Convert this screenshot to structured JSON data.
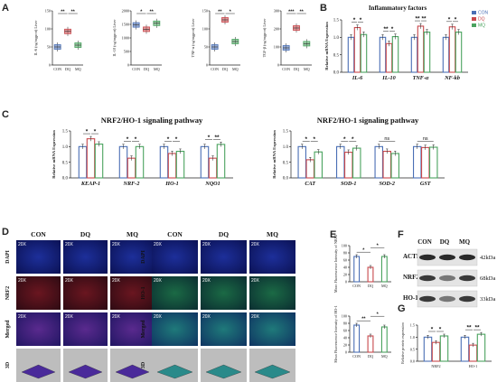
{
  "panels": {
    "A": {
      "label": "A",
      "x_categories": [
        "CON",
        "DQ",
        "MQ"
      ],
      "plots": [
        {
          "ylabel": "IL-6 (ng/mgprot) Liver",
          "ylim": [
            0,
            150
          ],
          "yticks": [
            0,
            50,
            100,
            150
          ],
          "medians": [
            50,
            93,
            55
          ],
          "sigs": [
            "**",
            "**"
          ]
        },
        {
          "ylabel": "IL-10 (ng/mgprot) Liver",
          "ylim": [
            0,
            2000
          ],
          "yticks": [
            0,
            500,
            1000,
            1500,
            2000
          ],
          "medians": [
            1480,
            1320,
            1540
          ],
          "sigs": [
            "*",
            "**"
          ]
        },
        {
          "ylabel": "TNF-α (ng/mgprot) Liver",
          "ylim": [
            0,
            150
          ],
          "yticks": [
            0,
            50,
            100,
            150
          ],
          "medians": [
            50,
            125,
            65
          ],
          "sigs": [
            "**",
            "*"
          ]
        },
        {
          "ylabel": "TGF-β (ng/mgprot) Liver",
          "ylim": [
            0,
            300
          ],
          "yticks": [
            0,
            100,
            200,
            300
          ],
          "medians": [
            95,
            205,
            118
          ],
          "sigs": [
            "***",
            "**"
          ]
        }
      ]
    },
    "B": {
      "label": "B",
      "title": "Inflammatory factors",
      "legend": [
        "CON",
        "DQ",
        "MQ"
      ],
      "colors": [
        "#4a6fb5",
        "#c8484c",
        "#4aa35f"
      ],
      "chart_data": {
        "type": "bar",
        "ylabel": "Relative mRNA Expression",
        "ylim": [
          0,
          1.5
        ],
        "yticks": [
          "0.0",
          "0.5",
          "1.0",
          "1.5"
        ],
        "categories": [
          "IL-6",
          "IL-10",
          "TNF-α",
          "NF-kb"
        ],
        "series": [
          {
            "name": "CON",
            "values": [
              1.0,
              1.0,
              1.0,
              1.0
            ]
          },
          {
            "name": "DQ",
            "values": [
              1.28,
              0.82,
              1.32,
              1.3
            ]
          },
          {
            "name": "MQ",
            "values": [
              1.08,
              1.02,
              1.15,
              1.15
            ]
          }
        ],
        "sigs": [
          [
            "*",
            "*"
          ],
          [
            "**",
            "*"
          ],
          [
            "**",
            "**"
          ],
          [
            "*",
            "*"
          ]
        ]
      }
    },
    "C": {
      "label": "C",
      "charts": [
        {
          "title": "NRF2/HO-1 signaling pathway",
          "chart_data": {
            "type": "bar",
            "ylabel": "Relative mRNA Expression",
            "ylim": [
              0,
              1.5
            ],
            "yticks": [
              "0.0",
              "0.5",
              "1.0",
              "1.5"
            ],
            "categories": [
              "KEAP-1",
              "NRF-2",
              "HO-1",
              "NQO1"
            ],
            "series": [
              {
                "name": "CON",
                "values": [
                  1.0,
                  1.0,
                  1.0,
                  1.0
                ]
              },
              {
                "name": "DQ",
                "values": [
                  1.25,
                  0.63,
                  0.78,
                  0.63
                ]
              },
              {
                "name": "MQ",
                "values": [
                  1.08,
                  1.0,
                  0.85,
                  1.07
                ]
              }
            ],
            "sigs": [
              [
                "*",
                "*"
              ],
              [
                "*",
                "*"
              ],
              [
                "*",
                "*"
              ],
              [
                "*",
                "**"
              ]
            ]
          }
        },
        {
          "title": "NRF2/HO-1 signaling pathway",
          "chart_data": {
            "type": "bar",
            "ylabel": "Relative mRNA Expression",
            "ylim": [
              0,
              1.5
            ],
            "yticks": [
              "0.0",
              "0.5",
              "1.0",
              "1.5"
            ],
            "categories": [
              "CAT",
              "SOD-1",
              "SOD-2",
              "GST"
            ],
            "series": [
              {
                "name": "CON",
                "values": [
                  1.0,
                  1.0,
                  1.0,
                  1.0
                ]
              },
              {
                "name": "DQ",
                "values": [
                  0.58,
                  0.82,
                  0.85,
                  0.97
                ]
              },
              {
                "name": "MQ",
                "values": [
                  0.83,
                  0.95,
                  0.78,
                  0.98
                ]
              }
            ],
            "sigs": [
              [
                "*",
                "*"
              ],
              [
                "*",
                "*"
              ],
              [
                "ns",
                ""
              ],
              [
                "ns",
                ""
              ]
            ]
          }
        }
      ]
    },
    "D": {
      "label": "D",
      "columns": [
        "CON",
        "DQ",
        "MQ"
      ],
      "rows_left": [
        "DAPI",
        "NRF2",
        "Merged",
        "3D"
      ],
      "rows_right": [
        "DAPI",
        "HO-1",
        "Merged",
        "3D"
      ],
      "magnification": "20X"
    },
    "E": {
      "label": "E",
      "charts": [
        {
          "chart_data": {
            "type": "bar",
            "ylabel": "Mean Fluorescence Intensity of NRF2",
            "ylim": [
              0,
              100
            ],
            "yticks": [
              "0",
              "20",
              "40",
              "60",
              "80",
              "100"
            ],
            "categories": [
              "CON",
              "DQ",
              "MQ"
            ],
            "values": [
              70,
              40,
              70
            ],
            "sigs": [
              "*",
              "*"
            ]
          }
        },
        {
          "chart_data": {
            "type": "bar",
            "ylabel": "Mean Fluorescence Intensity of HO-1",
            "ylim": [
              0,
              100
            ],
            "yticks": [
              "0",
              "20",
              "40",
              "60",
              "80",
              "100"
            ],
            "categories": [
              "CON",
              "DQ",
              "MQ"
            ],
            "values": [
              75,
              45,
              70
            ],
            "sigs": [
              "**",
              "*"
            ]
          }
        }
      ]
    },
    "F": {
      "label": "F",
      "columns": [
        "CON",
        "DQ",
        "MQ"
      ],
      "bands": [
        {
          "protein": "ACTIN",
          "size": "42kDa"
        },
        {
          "protein": "NRF2",
          "size": "68kDa"
        },
        {
          "protein": "HO-1",
          "size": "33kDa"
        }
      ]
    },
    "G": {
      "label": "G",
      "chart_data": {
        "type": "bar",
        "ylabel": "Relative protein expression",
        "ylim": [
          0,
          1.5
        ],
        "yticks": [
          "0.0",
          "0.5",
          "1.0",
          "1.5"
        ],
        "categories": [
          "NRF2",
          "HO-1"
        ],
        "series": [
          {
            "name": "CON",
            "values": [
              1.0,
              1.0
            ]
          },
          {
            "name": "DQ",
            "values": [
              0.78,
              0.67
            ]
          },
          {
            "name": "MQ",
            "values": [
              1.05,
              1.12
            ]
          }
        ],
        "sigs": [
          [
            "*",
            "*"
          ],
          [
            "**",
            "**"
          ]
        ]
      }
    }
  }
}
